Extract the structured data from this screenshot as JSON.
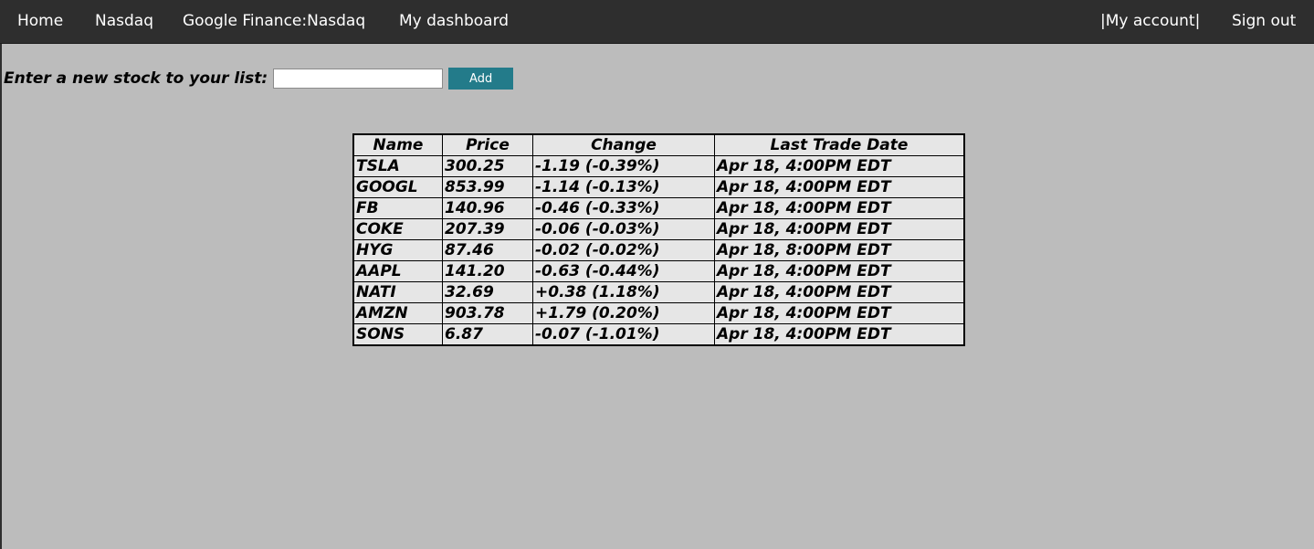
{
  "nav": {
    "home": "Home",
    "nasdaq": "Nasdaq",
    "google_finance": "Google Finance:Nasdaq",
    "dashboard": "My dashboard",
    "account": "|My account|",
    "sign_out": "Sign out"
  },
  "form": {
    "label": "Enter a new stock to your list:",
    "input_value": "",
    "input_placeholder": "",
    "add_label": "Add"
  },
  "table": {
    "headers": [
      "Name",
      "Price",
      "Change",
      "Last Trade Date"
    ],
    "rows": [
      [
        "TSLA",
        "300.25",
        "-1.19 (-0.39%)",
        "Apr 18, 4:00PM EDT"
      ],
      [
        "GOOGL",
        "853.99",
        "-1.14 (-0.13%)",
        "Apr 18, 4:00PM EDT"
      ],
      [
        "FB",
        "140.96",
        "-0.46 (-0.33%)",
        "Apr 18, 4:00PM EDT"
      ],
      [
        "COKE",
        "207.39",
        "-0.06 (-0.03%)",
        "Apr 18, 4:00PM EDT"
      ],
      [
        "HYG",
        "87.46",
        "-0.02 (-0.02%)",
        "Apr 18, 8:00PM EDT"
      ],
      [
        "AAPL",
        "141.20",
        "-0.63 (-0.44%)",
        "Apr 18, 4:00PM EDT"
      ],
      [
        "NATI",
        "32.69",
        "+0.38 (1.18%)",
        "Apr 18, 4:00PM EDT"
      ],
      [
        "AMZN",
        "903.78",
        "+1.79 (0.20%)",
        "Apr 18, 4:00PM EDT"
      ],
      [
        "SONS",
        "6.87",
        "-0.07 (-1.01%)",
        "Apr 18, 4:00PM EDT"
      ]
    ]
  },
  "colors": {
    "navbar_bg": "#2e2e2e",
    "page_bg": "#bcbcbc",
    "table_bg": "#e6e6e6",
    "button_bg": "#237b8a"
  }
}
